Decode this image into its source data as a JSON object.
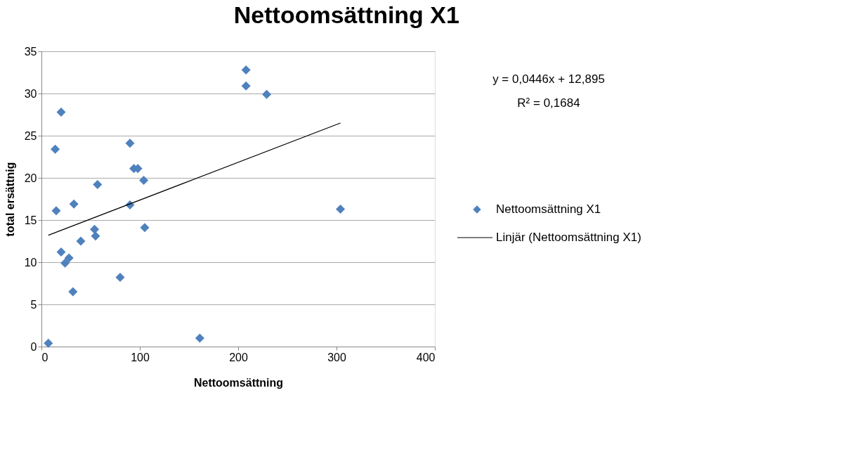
{
  "chart_data": {
    "type": "scatter",
    "title": "Nettoomsättning X1",
    "xlabel": "Nettoomsättning",
    "ylabel": "total  ersättnig",
    "xlim": [
      0,
      400
    ],
    "xticks": [
      0,
      100,
      200,
      300,
      400
    ],
    "ylim": [
      0,
      35
    ],
    "yticks": [
      0,
      5,
      10,
      15,
      20,
      25,
      30,
      35
    ],
    "grid": "y",
    "legend": "right",
    "marker": "diamond",
    "annotations": [
      "y = 0,0446x + 12,895",
      "R² = 0,1684"
    ],
    "series": [
      {
        "name": "Nettoomsättning X1",
        "color": "#4f81bd",
        "x": [
          7,
          20,
          14,
          90,
          57,
          94,
          98,
          104,
          15,
          33,
          90,
          105,
          54,
          55,
          40,
          20,
          28,
          24,
          32,
          80,
          161,
          208,
          208,
          229,
          304
        ],
        "values": [
          0.4,
          27.8,
          23.4,
          24.1,
          19.2,
          21.1,
          21.1,
          19.7,
          16.1,
          16.9,
          16.8,
          14.1,
          13.9,
          13.1,
          12.5,
          11.2,
          10.5,
          9.9,
          6.5,
          8.2,
          1.0,
          32.8,
          30.9,
          29.9,
          16.3
        ]
      },
      {
        "name": "Linjär (Nettoomsättning X1)",
        "type": "line",
        "color": "#000000",
        "line_style": "solid",
        "marker": "none",
        "x": [
          7,
          304
        ],
        "values": [
          13.2,
          26.5
        ]
      }
    ]
  }
}
